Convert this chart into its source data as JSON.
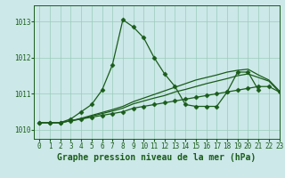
{
  "title": "Graphe pression niveau de la mer (hPa)",
  "bg_color": "#cce8e8",
  "grid_color": "#99ccbb",
  "line_color": "#1a5c1a",
  "xlim": [
    -0.5,
    23
  ],
  "ylim": [
    1009.75,
    1013.45
  ],
  "yticks": [
    1010,
    1011,
    1012,
    1013
  ],
  "xticks": [
    0,
    1,
    2,
    3,
    4,
    5,
    6,
    7,
    8,
    9,
    10,
    11,
    12,
    13,
    14,
    15,
    16,
    17,
    18,
    19,
    20,
    21,
    22,
    23
  ],
  "series": [
    {
      "x": [
        0,
        1,
        2,
        3,
        4,
        5,
        6,
        7,
        8,
        9,
        10,
        11,
        12,
        13,
        14,
        15,
        16,
        17,
        18,
        19,
        20,
        21
      ],
      "y": [
        1010.2,
        1010.2,
        1010.2,
        1010.3,
        1010.5,
        1010.7,
        1011.1,
        1011.8,
        1013.05,
        1012.85,
        1012.55,
        1012.0,
        1011.55,
        1011.2,
        1010.7,
        1010.65,
        1010.65,
        1010.65,
        1011.05,
        1011.6,
        1011.6,
        1011.1
      ],
      "has_markers": true
    },
    {
      "x": [
        0,
        1,
        2,
        3,
        4,
        5,
        6,
        7,
        8,
        9,
        10,
        11,
        12,
        13,
        14,
        15,
        16,
        17,
        18,
        19,
        20,
        21,
        22,
        23
      ],
      "y": [
        1010.2,
        1010.2,
        1010.2,
        1010.25,
        1010.3,
        1010.35,
        1010.4,
        1010.45,
        1010.5,
        1010.6,
        1010.65,
        1010.7,
        1010.75,
        1010.8,
        1010.85,
        1010.9,
        1010.95,
        1011.0,
        1011.05,
        1011.1,
        1011.15,
        1011.2,
        1011.2,
        1011.05
      ],
      "has_markers": true
    },
    {
      "x": [
        0,
        1,
        2,
        3,
        4,
        5,
        6,
        7,
        8,
        9,
        10,
        11,
        12,
        13,
        14,
        15,
        16,
        17,
        18,
        19,
        20,
        21,
        22,
        23
      ],
      "y": [
        1010.2,
        1010.2,
        1010.2,
        1010.25,
        1010.3,
        1010.38,
        1010.45,
        1010.52,
        1010.6,
        1010.72,
        1010.8,
        1010.88,
        1010.95,
        1011.05,
        1011.12,
        1011.2,
        1011.28,
        1011.35,
        1011.42,
        1011.5,
        1011.55,
        1011.45,
        1011.35,
        1011.05
      ],
      "has_markers": false
    },
    {
      "x": [
        0,
        1,
        2,
        3,
        4,
        5,
        6,
        7,
        8,
        9,
        10,
        11,
        12,
        13,
        14,
        15,
        16,
        17,
        18,
        19,
        20,
        21,
        22,
        23
      ],
      "y": [
        1010.2,
        1010.2,
        1010.2,
        1010.25,
        1010.32,
        1010.4,
        1010.48,
        1010.56,
        1010.65,
        1010.78,
        1010.88,
        1010.98,
        1011.08,
        1011.18,
        1011.28,
        1011.38,
        1011.45,
        1011.52,
        1011.6,
        1011.65,
        1011.68,
        1011.52,
        1011.38,
        1011.08
      ],
      "has_markers": false
    }
  ],
  "marker": "D",
  "markersize": 2.5,
  "linewidth": 0.9,
  "title_fontsize": 7,
  "tick_fontsize": 5.5
}
